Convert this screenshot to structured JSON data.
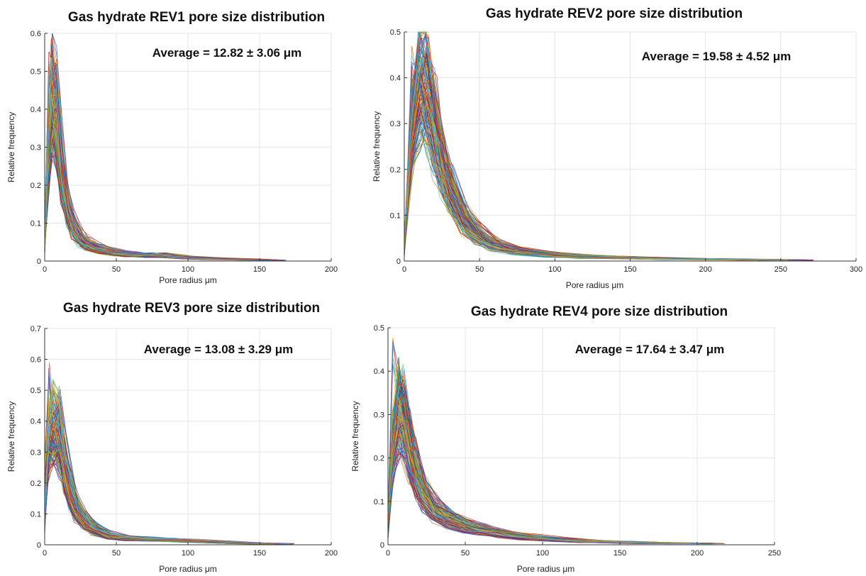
{
  "chart_data": [
    {
      "type": "line",
      "title": "Gas hydrate REV1 pore size distribution",
      "annotation": "Average = 12.82 ± 3.06 μm",
      "xlabel": "Pore radius μm",
      "ylabel": "Relative frequency",
      "xlim": [
        0,
        200
      ],
      "ylim": [
        0,
        0.6
      ],
      "xticks": [
        0,
        50,
        100,
        150,
        200
      ],
      "yticks": [
        0,
        0.1,
        0.2,
        0.3,
        0.4,
        0.5,
        0.6
      ],
      "grid": true,
      "series": [
        {
          "x": [
            0,
            3,
            5,
            8,
            12,
            16,
            20,
            25,
            30,
            40,
            50,
            60,
            70,
            80,
            90,
            100,
            120,
            140,
            155
          ],
          "values": [
            0.05,
            0.3,
            0.44,
            0.39,
            0.24,
            0.14,
            0.09,
            0.06,
            0.045,
            0.03,
            0.022,
            0.018,
            0.015,
            0.016,
            0.012,
            0.009,
            0.006,
            0.004,
            0.002
          ]
        }
      ],
      "peak": 0.56,
      "colors": [
        "#0072bd",
        "#d95319",
        "#edb120",
        "#7e2f8e",
        "#77ac30",
        "#4dbeee",
        "#a2142f"
      ]
    },
    {
      "type": "line",
      "title": "Gas hydrate REV2 pore size distribution",
      "annotation": "Average = 19.58 ± 4.52 μm",
      "xlabel": "Pore radius μm",
      "ylabel": "Relative frequency",
      "xlim": [
        0,
        300
      ],
      "ylim": [
        0,
        0.5
      ],
      "xticks": [
        0,
        50,
        100,
        150,
        200,
        250,
        300
      ],
      "yticks": [
        0,
        0.1,
        0.2,
        0.3,
        0.4,
        0.5
      ],
      "grid": true,
      "series": [
        {
          "x": [
            0,
            5,
            10,
            15,
            20,
            25,
            30,
            40,
            50,
            60,
            75,
            100,
            125,
            150,
            175,
            200,
            225,
            250
          ],
          "values": [
            0.02,
            0.28,
            0.38,
            0.37,
            0.3,
            0.22,
            0.16,
            0.09,
            0.055,
            0.035,
            0.022,
            0.013,
            0.009,
            0.007,
            0.005,
            0.004,
            0.003,
            0.002
          ]
        }
      ],
      "peak": 0.48,
      "colors": [
        "#0072bd",
        "#d95319",
        "#edb120",
        "#7e2f8e",
        "#77ac30",
        "#4dbeee",
        "#a2142f"
      ]
    },
    {
      "type": "line",
      "title": "Gas hydrate REV3 pore size distribution",
      "annotation": "Average = 13.08 ± 3.29 μm",
      "xlabel": "Pore radius μm",
      "ylabel": "Relative frequency",
      "xlim": [
        0,
        200
      ],
      "ylim": [
        0,
        0.7
      ],
      "xticks": [
        0,
        50,
        100,
        150,
        200
      ],
      "yticks": [
        0,
        0.1,
        0.2,
        0.3,
        0.4,
        0.5,
        0.6,
        0.7
      ],
      "grid": true,
      "series": [
        {
          "x": [
            0,
            3,
            6,
            10,
            14,
            18,
            22,
            28,
            35,
            45,
            55,
            70,
            85,
            100,
            120,
            140,
            160
          ],
          "values": [
            0.1,
            0.34,
            0.38,
            0.36,
            0.26,
            0.17,
            0.12,
            0.075,
            0.05,
            0.03,
            0.022,
            0.018,
            0.016,
            0.013,
            0.009,
            0.005,
            0.003
          ]
        }
      ],
      "peak": 0.6,
      "colors": [
        "#0072bd",
        "#d95319",
        "#edb120",
        "#7e2f8e",
        "#77ac30",
        "#4dbeee",
        "#a2142f"
      ]
    },
    {
      "type": "line",
      "title": "Gas hydrate REV4 pore size distribution",
      "annotation": "Average = 17.64 ± 3.47 μm",
      "xlabel": "Pore radius μm",
      "ylabel": "Relative frequency",
      "xlim": [
        0,
        250
      ],
      "ylim": [
        0,
        0.5
      ],
      "xticks": [
        0,
        50,
        100,
        150,
        200,
        250
      ],
      "yticks": [
        0,
        0.1,
        0.2,
        0.3,
        0.4,
        0.5
      ],
      "grid": true,
      "series": [
        {
          "x": [
            0,
            3,
            7,
            10,
            14,
            18,
            23,
            30,
            40,
            50,
            60,
            75,
            90,
            110,
            130,
            150,
            170,
            200
          ],
          "values": [
            0.03,
            0.22,
            0.32,
            0.3,
            0.23,
            0.17,
            0.12,
            0.085,
            0.06,
            0.045,
            0.035,
            0.025,
            0.018,
            0.012,
            0.008,
            0.006,
            0.004,
            0.003
          ]
        }
      ],
      "peak": 0.48,
      "colors": [
        "#0072bd",
        "#d95319",
        "#edb120",
        "#7e2f8e",
        "#77ac30",
        "#4dbeee",
        "#a2142f"
      ]
    }
  ]
}
